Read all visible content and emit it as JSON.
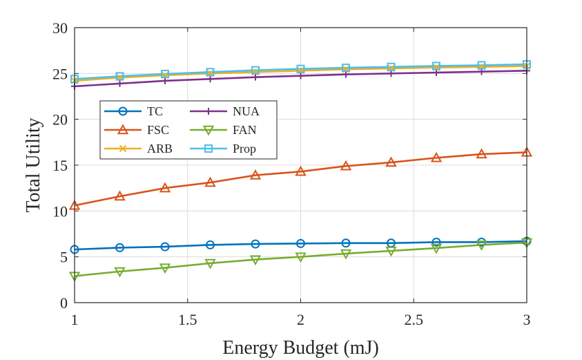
{
  "chart_data": {
    "type": "line",
    "title": "",
    "xlabel": "Energy Budget (mJ)",
    "ylabel": "Total Utility",
    "xlim": [
      1,
      3
    ],
    "ylim": [
      0,
      30
    ],
    "xticks": [
      1,
      1.5,
      2,
      2.5,
      3
    ],
    "yticks": [
      0,
      5,
      10,
      15,
      20,
      25,
      30
    ],
    "xtick_labels": [
      "1",
      "1.5",
      "2",
      "2.5",
      "3"
    ],
    "ytick_labels": [
      "0",
      "5",
      "10",
      "15",
      "20",
      "25",
      "30"
    ],
    "grid": true,
    "legend_position": "left-middle",
    "x": [
      1.0,
      1.2,
      1.4,
      1.6,
      1.8,
      2.0,
      2.2,
      2.4,
      2.6,
      2.8,
      3.0
    ],
    "series": [
      {
        "name": "TC",
        "color": "#0072BD",
        "marker": "circle",
        "values": [
          5.8,
          6.0,
          6.1,
          6.3,
          6.4,
          6.45,
          6.5,
          6.5,
          6.6,
          6.6,
          6.7
        ]
      },
      {
        "name": "FSC",
        "color": "#D95319",
        "marker": "triangle-up",
        "values": [
          10.6,
          11.6,
          12.5,
          13.1,
          13.9,
          14.3,
          14.9,
          15.3,
          15.8,
          16.2,
          16.4
        ]
      },
      {
        "name": "ARB",
        "color": "#EDB120",
        "marker": "x",
        "values": [
          24.2,
          24.55,
          24.8,
          25.0,
          25.15,
          25.3,
          25.45,
          25.55,
          25.65,
          25.72,
          25.8
        ]
      },
      {
        "name": "NUA",
        "color": "#7E2F8E",
        "marker": "plus",
        "values": [
          23.6,
          23.9,
          24.2,
          24.4,
          24.6,
          24.75,
          24.9,
          25.0,
          25.1,
          25.2,
          25.3
        ]
      },
      {
        "name": "FAN",
        "color": "#77AC30",
        "marker": "triangle-down",
        "values": [
          2.9,
          3.4,
          3.8,
          4.3,
          4.7,
          5.0,
          5.35,
          5.65,
          5.95,
          6.3,
          6.55
        ]
      },
      {
        "name": "Prop",
        "color": "#4DBEEE",
        "marker": "square",
        "values": [
          24.4,
          24.7,
          24.95,
          25.15,
          25.35,
          25.5,
          25.62,
          25.72,
          25.82,
          25.9,
          26.0
        ]
      }
    ]
  }
}
